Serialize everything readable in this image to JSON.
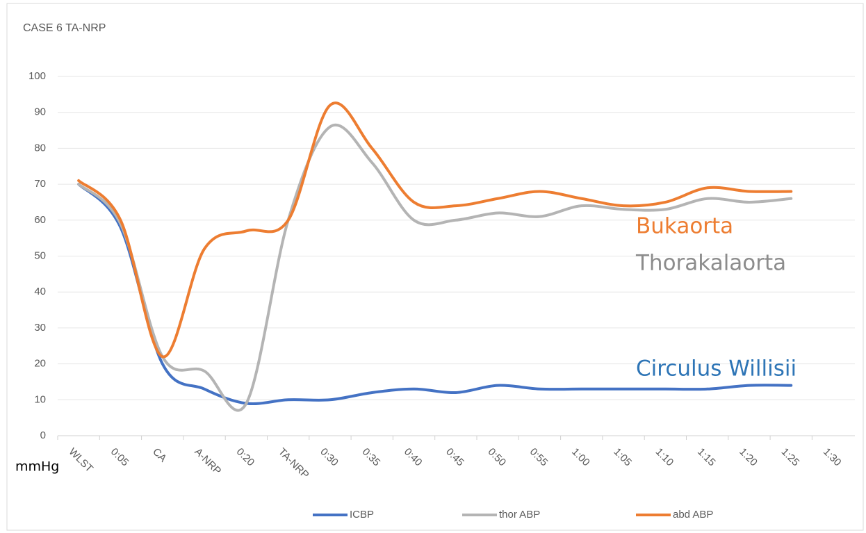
{
  "chart_data": {
    "type": "line",
    "title": "CASE 6 TA-NRP",
    "y_label": "mmHg",
    "categories": [
      "WLST",
      "0:05",
      "CA",
      "A-NRP",
      "0:20",
      "TA-NRP",
      "0:30",
      "0:35",
      "0:40",
      "0:45",
      "0:50",
      "0:55",
      "1:00",
      "1:05",
      "1:10",
      "1:15",
      "1:20",
      "1:25",
      "1:30"
    ],
    "series": [
      {
        "name": "ICBP",
        "color": "#4472c4",
        "values": [
          70,
          58,
          20,
          13,
          9,
          10,
          10,
          12,
          13,
          12,
          14,
          13,
          13,
          13,
          13,
          13,
          14,
          14,
          null
        ]
      },
      {
        "name": "thor ABP",
        "color": "#b4b4b4",
        "values": [
          70,
          59,
          22,
          18,
          9,
          60,
          86,
          76,
          60,
          60,
          62,
          61,
          64,
          63,
          63,
          66,
          65,
          66,
          null
        ]
      },
      {
        "name": "abd ABP",
        "color": "#ed7d31",
        "values": [
          71,
          60,
          22,
          52,
          57,
          60,
          92,
          80,
          65,
          64,
          66,
          68,
          66,
          64,
          65,
          69,
          68,
          68,
          null
        ]
      }
    ],
    "annotations": [
      {
        "text": "Bukaorta",
        "color": "#ed7d31"
      },
      {
        "text": "Thorakalaorta",
        "color": "#8c8c8c"
      },
      {
        "text": "Circulus Willisii",
        "color": "#2e75b6"
      }
    ],
    "ylim": [
      0,
      100
    ],
    "yticks": [
      0,
      10,
      20,
      30,
      40,
      50,
      60,
      70,
      80,
      90,
      100
    ],
    "grid": true,
    "legend": "bottom"
  }
}
